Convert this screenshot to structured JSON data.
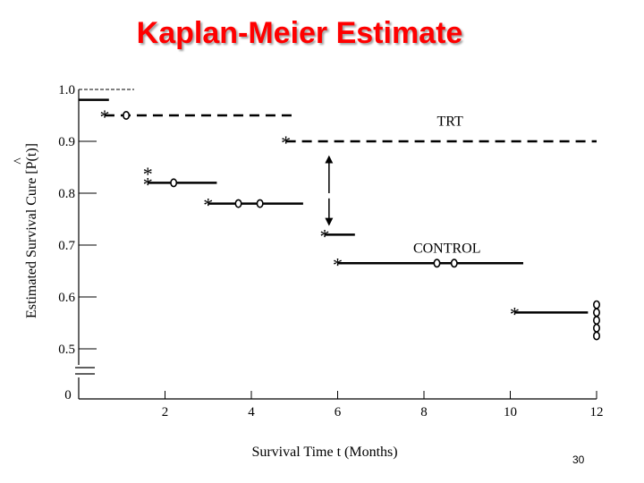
{
  "chart_data": {
    "type": "line",
    "title": "Kaplan-Meier Estimate",
    "xlabel": "Survival Time t (Months)",
    "ylabel": "Estimated Survival Cure [P(t)]",
    "xlim": [
      0,
      12
    ],
    "ylim": [
      0.5,
      1.0
    ],
    "x_ticks": [
      2,
      4,
      6,
      8,
      10,
      12
    ],
    "y_ticks": [
      1.0,
      0.9,
      0.8,
      0.7,
      0.6,
      0.5
    ],
    "y_tick_labels": [
      "1.0",
      "0.9",
      "0.8",
      "0.7",
      "0.6",
      "0.5"
    ],
    "zero_label": "0",
    "axis_break": true,
    "series": [
      {
        "name": "TRT",
        "style": "dashed",
        "steps": [
          {
            "x": 0.6,
            "x_end": 5.0,
            "y": 0.95
          },
          {
            "x": 4.8,
            "x_end": 12.0,
            "y": 0.9
          }
        ],
        "events": [
          {
            "x": 0.6,
            "y": 0.95
          },
          {
            "x": 4.8,
            "y": 0.9
          }
        ],
        "censored": [
          {
            "x": 1.1,
            "y": 0.95
          }
        ]
      },
      {
        "name": "CONTROL",
        "style": "solid",
        "steps": [
          {
            "x": 0.0,
            "x_end": 0.7,
            "y": 0.98
          },
          {
            "x": 1.6,
            "x_end": 3.2,
            "y": 0.82
          },
          {
            "x": 3.0,
            "x_end": 5.2,
            "y": 0.78
          },
          {
            "x": 5.7,
            "x_end": 6.4,
            "y": 0.72
          },
          {
            "x": 6.0,
            "x_end": 10.3,
            "y": 0.665
          },
          {
            "x": 10.1,
            "x_end": 11.8,
            "y": 0.57
          }
        ],
        "events": [
          {
            "x": 1.6,
            "y": 0.84
          },
          {
            "x": 1.6,
            "y": 0.82
          },
          {
            "x": 3.0,
            "y": 0.78
          },
          {
            "x": 5.7,
            "y": 0.72
          },
          {
            "x": 6.0,
            "y": 0.665
          },
          {
            "x": 10.1,
            "y": 0.57
          }
        ],
        "censored": [
          {
            "x": 2.2,
            "y": 0.82
          },
          {
            "x": 3.7,
            "y": 0.78
          },
          {
            "x": 4.2,
            "y": 0.78
          },
          {
            "x": 8.3,
            "y": 0.665
          },
          {
            "x": 8.7,
            "y": 0.665
          },
          {
            "x": 12.0,
            "y": 0.585
          },
          {
            "x": 12.0,
            "y": 0.57
          },
          {
            "x": 12.0,
            "y": 0.555
          },
          {
            "x": 12.0,
            "y": 0.54
          },
          {
            "x": 12.0,
            "y": 0.525
          }
        ]
      }
    ],
    "annotations": [
      "vertical arrows between TRT and CONTROL at x = 6"
    ]
  },
  "slide_number": "30"
}
